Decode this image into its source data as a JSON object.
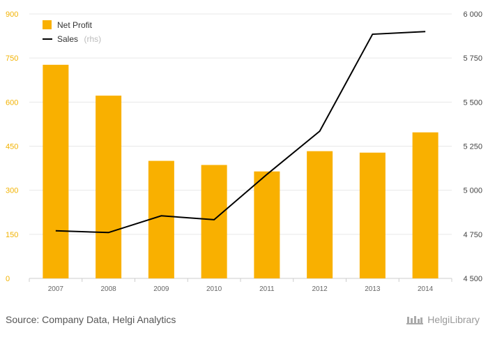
{
  "colors": {
    "bar": "#f9b000",
    "line": "#000000",
    "left_axis_text": "#f2b200",
    "right_axis_text": "#444444",
    "grid": "#e8e8e8"
  },
  "chart_data": {
    "type": "bar",
    "categories": [
      "2007",
      "2008",
      "2009",
      "2010",
      "2011",
      "2012",
      "2013",
      "2014"
    ],
    "series": [
      {
        "name": "Net Profit",
        "type": "bar",
        "axis": "left",
        "values": [
          727,
          622,
          400,
          386,
          364,
          433,
          428,
          497
        ]
      },
      {
        "name": "Sales",
        "type": "line",
        "axis": "right",
        "values": [
          4770,
          4760,
          4855,
          4833,
          5090,
          5335,
          5885,
          5900
        ]
      }
    ],
    "left_axis": {
      "ticks": [
        0,
        150,
        300,
        450,
        600,
        750,
        900
      ],
      "labels": [
        "0",
        "150",
        "300",
        "450",
        "600",
        "750",
        "900"
      ],
      "range": [
        0,
        900
      ]
    },
    "right_axis": {
      "ticks": [
        4500,
        4750,
        5000,
        5250,
        5500,
        5750,
        6000
      ],
      "labels": [
        "4 500",
        "4 750",
        "5 000",
        "5 250",
        "5 500",
        "5 750",
        "6 000"
      ],
      "range": [
        4500,
        6000
      ]
    },
    "grid": true,
    "legend": {
      "placement": "top-left",
      "bar_label": "Net Profit",
      "line_label": "Sales",
      "line_suffix": "(rhs)"
    }
  },
  "footer": {
    "source": "Source: Company Data, Helgi Analytics",
    "brand": "HelgiLibrary"
  }
}
